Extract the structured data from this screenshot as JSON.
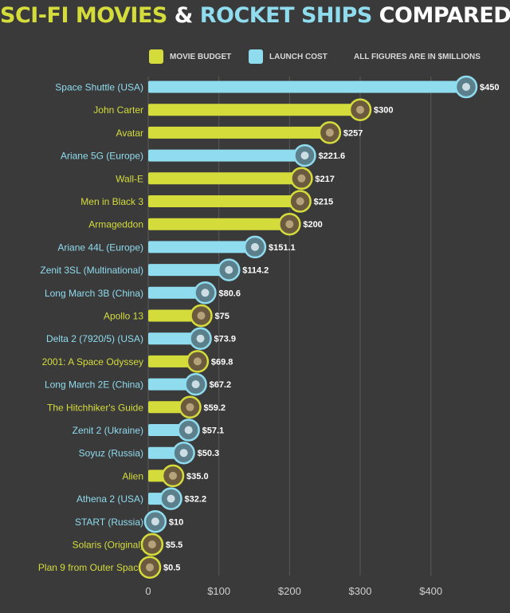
{
  "title": {
    "part1": "SCI-FI MOVIES",
    "amp": " & ",
    "part2": "ROCKET SHIPS",
    "part3": " COMPARED"
  },
  "legend": {
    "movie_label": "MOVIE BUDGET",
    "rocket_label": "LAUNCH COST",
    "note": "ALL FIGURES ARE IN $MILLIONS"
  },
  "colors": {
    "background": "#3a3a3a",
    "movie": "#d4dc3c",
    "rocket": "#8fdcef",
    "movie_text": "#d4dc3c",
    "rocket_text": "#8fdcef",
    "grid": "#595959"
  },
  "chart_data": {
    "type": "bar",
    "orientation": "horizontal",
    "title": "SCI-FI MOVIES & ROCKET SHIPS COMPARED",
    "xlabel": "",
    "ylabel": "",
    "xlim": [
      0,
      450
    ],
    "grid": true,
    "legend_position": "top",
    "x_ticks": [
      "0",
      "$100",
      "$200",
      "$300",
      "$400"
    ],
    "x_tick_values": [
      0,
      100,
      200,
      300,
      400
    ],
    "categories": [
      "Space Shuttle (USA)",
      "John Carter",
      "Avatar",
      "Ariane 5G (Europe)",
      "Wall-E",
      "Men in Black 3",
      "Armageddon",
      "Ariane 44L (Europe)",
      "Zenit 3SL (Multinational)",
      "Long March 3B (China)",
      "Apollo 13",
      "Delta 2 (7920/5) (USA)",
      "2001: A Space Odyssey",
      "Long March 2E (China)",
      "The Hitchhiker's Guide",
      "Zenit 2 (Ukraine)",
      "Soyuz (Russia)",
      "Alien",
      "Athena 2 (USA)",
      "START (Russia)",
      "Solaris (Original)",
      "Plan 9 from Outer Space"
    ],
    "values": [
      450,
      300,
      257,
      221.6,
      217,
      215,
      200,
      151.1,
      114.2,
      80.6,
      75,
      73.9,
      69.8,
      67.2,
      59.2,
      57.1,
      50.3,
      35.0,
      32.2,
      10,
      5.5,
      0.5
    ],
    "value_labels": [
      "$450",
      "$300",
      "$257",
      "$221.6",
      "$217",
      "$215",
      "$200",
      "$151.1",
      "$114.2",
      "$80.6",
      "$75",
      "$73.9",
      "$69.8",
      "$67.2",
      "$59.2",
      "$57.1",
      "$50.3",
      "$35.0",
      "$32.2",
      "$10",
      "$5.5",
      "$0.5"
    ],
    "kinds": [
      "rocket",
      "movie",
      "movie",
      "rocket",
      "movie",
      "movie",
      "movie",
      "rocket",
      "rocket",
      "rocket",
      "movie",
      "rocket",
      "movie",
      "rocket",
      "movie",
      "rocket",
      "rocket",
      "movie",
      "rocket",
      "rocket",
      "movie",
      "movie"
    ],
    "series": [
      {
        "name": "MOVIE BUDGET",
        "kind": "movie"
      },
      {
        "name": "LAUNCH COST",
        "kind": "rocket"
      }
    ]
  }
}
